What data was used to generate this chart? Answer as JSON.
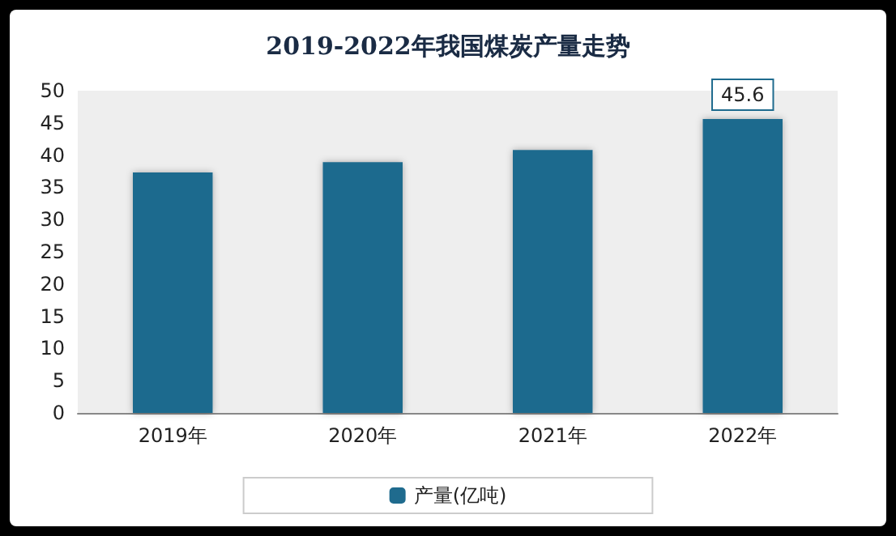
{
  "chart_data": {
    "type": "bar",
    "title": "2019-2022年我国煤炭产量走势",
    "categories": [
      "2019年",
      "2020年",
      "2021年",
      "2022年"
    ],
    "series": [
      {
        "name": "产量(亿吨)",
        "color": "#1f6b8e",
        "values": [
          37.3,
          38.9,
          40.8,
          45.6
        ],
        "value_labels": [
          null,
          null,
          null,
          "45.6"
        ]
      }
    ],
    "ylim": [
      0,
      50
    ],
    "yticks": [
      0,
      5,
      10,
      15,
      20,
      25,
      30,
      35,
      40,
      45,
      50
    ],
    "grid": false,
    "legend": "bottom"
  }
}
